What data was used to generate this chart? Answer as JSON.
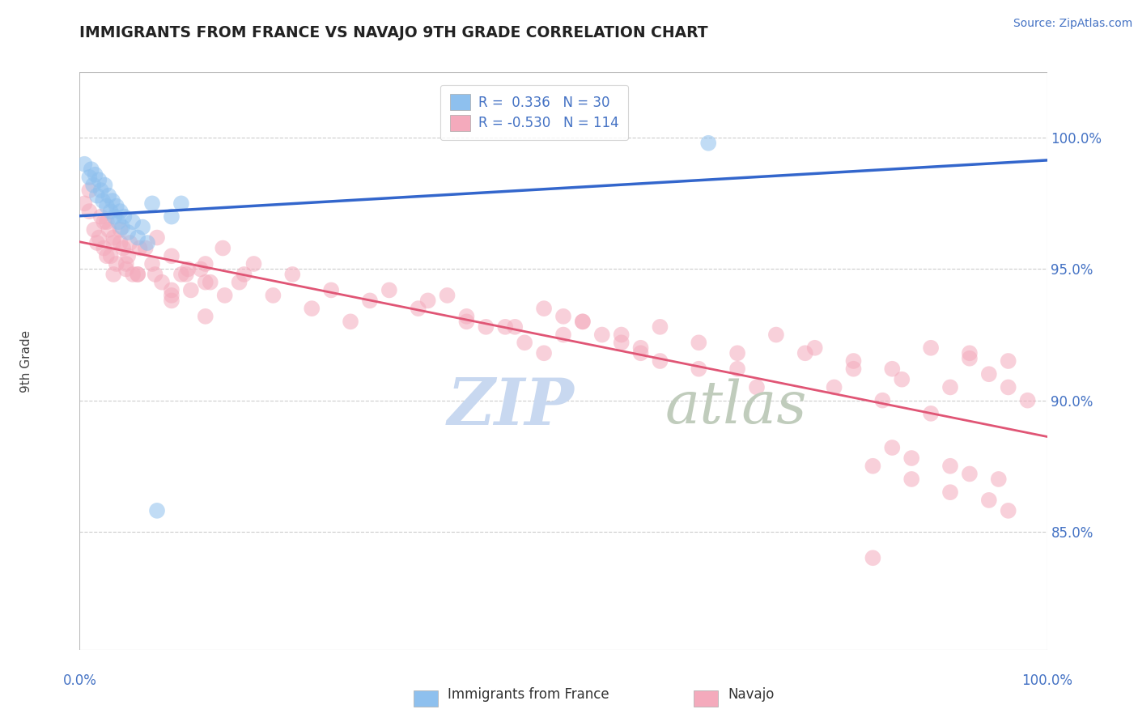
{
  "title": "IMMIGRANTS FROM FRANCE VS NAVAJO 9TH GRADE CORRELATION CHART",
  "source_text": "Source: ZipAtlas.com",
  "ylabel": "9th Grade",
  "ytick_labels": [
    "85.0%",
    "90.0%",
    "95.0%",
    "100.0%"
  ],
  "ytick_values": [
    0.85,
    0.9,
    0.95,
    1.0
  ],
  "xmin": 0.0,
  "xmax": 1.0,
  "ymin": 0.805,
  "ymax": 1.025,
  "blue_color": "#8EC0EE",
  "pink_color": "#F4AABC",
  "blue_line_color": "#3366CC",
  "pink_line_color": "#E05575",
  "watermark_zip": "ZIP",
  "watermark_atlas": "atlas",
  "watermark_color_zip": "#C8D8F0",
  "watermark_color_atlas": "#C8D0C8",
  "background_color": "#FFFFFF",
  "blue_points_x": [
    0.005,
    0.01,
    0.012,
    0.014,
    0.016,
    0.018,
    0.02,
    0.022,
    0.024,
    0.026,
    0.028,
    0.03,
    0.032,
    0.034,
    0.036,
    0.038,
    0.04,
    0.042,
    0.044,
    0.046,
    0.05,
    0.055,
    0.06,
    0.065,
    0.07,
    0.075,
    0.08,
    0.095,
    0.105,
    0.65
  ],
  "blue_points_y": [
    0.99,
    0.985,
    0.988,
    0.982,
    0.986,
    0.978,
    0.984,
    0.98,
    0.976,
    0.982,
    0.974,
    0.978,
    0.972,
    0.976,
    0.97,
    0.974,
    0.968,
    0.972,
    0.966,
    0.97,
    0.964,
    0.968,
    0.962,
    0.966,
    0.96,
    0.975,
    0.858,
    0.97,
    0.975,
    0.998
  ],
  "pink_points_x": [
    0.005,
    0.01,
    0.015,
    0.018,
    0.022,
    0.025,
    0.028,
    0.032,
    0.035,
    0.038,
    0.042,
    0.045,
    0.048,
    0.052,
    0.055,
    0.01,
    0.02,
    0.028,
    0.035,
    0.042,
    0.05,
    0.06,
    0.068,
    0.075,
    0.085,
    0.095,
    0.105,
    0.115,
    0.125,
    0.135,
    0.025,
    0.035,
    0.048,
    0.062,
    0.078,
    0.095,
    0.112,
    0.13,
    0.15,
    0.17,
    0.08,
    0.095,
    0.11,
    0.13,
    0.148,
    0.03,
    0.06,
    0.095,
    0.13,
    0.165,
    0.2,
    0.24,
    0.28,
    0.32,
    0.36,
    0.4,
    0.44,
    0.48,
    0.52,
    0.56,
    0.6,
    0.64,
    0.68,
    0.72,
    0.76,
    0.8,
    0.84,
    0.88,
    0.92,
    0.96,
    0.18,
    0.22,
    0.26,
    0.3,
    0.35,
    0.4,
    0.45,
    0.5,
    0.6,
    0.7,
    0.75,
    0.8,
    0.85,
    0.9,
    0.92,
    0.94,
    0.96,
    0.98,
    0.58,
    0.68,
    0.78,
    0.83,
    0.88,
    0.84,
    0.86,
    0.9,
    0.92,
    0.95,
    0.38,
    0.5,
    0.42,
    0.46,
    0.48,
    0.82,
    0.86,
    0.9,
    0.94,
    0.96,
    0.52,
    0.54,
    0.56,
    0.58,
    0.64,
    0.82
  ],
  "pink_points_y": [
    0.975,
    0.98,
    0.965,
    0.96,
    0.97,
    0.958,
    0.968,
    0.955,
    0.962,
    0.952,
    0.965,
    0.958,
    0.95,
    0.96,
    0.948,
    0.972,
    0.962,
    0.955,
    0.948,
    0.96,
    0.955,
    0.948,
    0.958,
    0.952,
    0.945,
    0.94,
    0.948,
    0.942,
    0.95,
    0.945,
    0.968,
    0.96,
    0.952,
    0.958,
    0.948,
    0.942,
    0.95,
    0.945,
    0.94,
    0.948,
    0.962,
    0.955,
    0.948,
    0.952,
    0.958,
    0.965,
    0.948,
    0.938,
    0.932,
    0.945,
    0.94,
    0.935,
    0.93,
    0.942,
    0.938,
    0.932,
    0.928,
    0.935,
    0.93,
    0.925,
    0.928,
    0.922,
    0.918,
    0.925,
    0.92,
    0.915,
    0.912,
    0.92,
    0.916,
    0.915,
    0.952,
    0.948,
    0.942,
    0.938,
    0.935,
    0.93,
    0.928,
    0.925,
    0.915,
    0.905,
    0.918,
    0.912,
    0.908,
    0.905,
    0.918,
    0.91,
    0.905,
    0.9,
    0.92,
    0.912,
    0.905,
    0.9,
    0.895,
    0.882,
    0.878,
    0.875,
    0.872,
    0.87,
    0.94,
    0.932,
    0.928,
    0.922,
    0.918,
    0.875,
    0.87,
    0.865,
    0.862,
    0.858,
    0.93,
    0.925,
    0.922,
    0.918,
    0.912,
    0.84
  ]
}
